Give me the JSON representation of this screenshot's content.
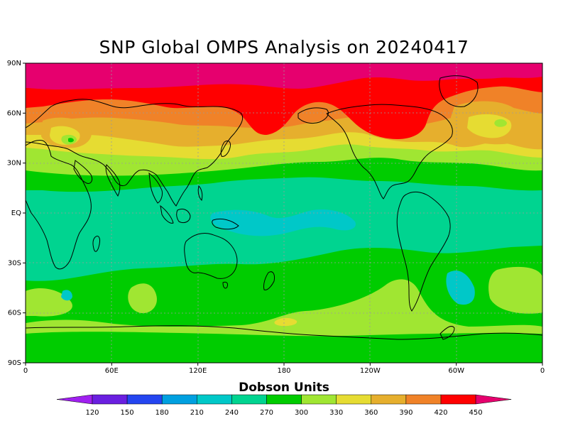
{
  "title": "SNP Global OMPS Analysis on 20240417",
  "map": {
    "projection": "equirectangular",
    "lat_range": [
      -90,
      90
    ],
    "lon_range": [
      0,
      360
    ],
    "grid": "dashed gray at 30° lat / 60° lon",
    "lat_ticks": [
      {
        "value": 90,
        "label": "90N"
      },
      {
        "value": 60,
        "label": "60N"
      },
      {
        "value": 30,
        "label": "30N"
      },
      {
        "value": 0,
        "label": "EQ"
      },
      {
        "value": -30,
        "label": "30S"
      },
      {
        "value": -60,
        "label": "60S"
      },
      {
        "value": -90,
        "label": "90S"
      }
    ],
    "lon_ticks": [
      {
        "value": 0,
        "label": "0"
      },
      {
        "value": 60,
        "label": "60E"
      },
      {
        "value": 120,
        "label": "120E"
      },
      {
        "value": 180,
        "label": "180"
      },
      {
        "value": 240,
        "label": "120W"
      },
      {
        "value": 300,
        "label": "60W"
      },
      {
        "value": 360,
        "label": "0"
      }
    ]
  },
  "colorbar": {
    "title": "Dobson Units",
    "levels": [
      120,
      150,
      180,
      210,
      240,
      270,
      300,
      330,
      360,
      390,
      420,
      450
    ],
    "colors": [
      "#a020f0",
      "#6a1fe0",
      "#2445f0",
      "#00a0e0",
      "#00c8c8",
      "#00d490",
      "#00cc00",
      "#a0e632",
      "#e6dc32",
      "#e6af2d",
      "#f08228",
      "#ff0000",
      "#e6006e"
    ],
    "extend": "both"
  }
}
